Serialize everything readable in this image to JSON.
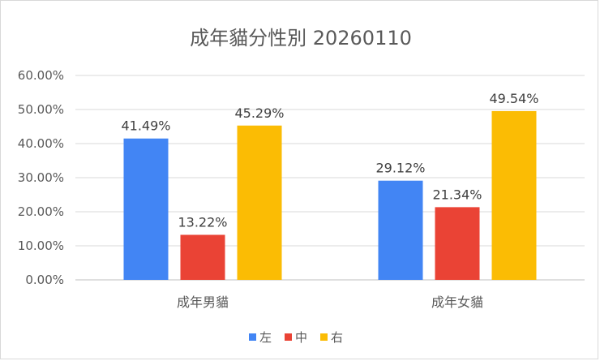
{
  "chart_data": {
    "type": "bar",
    "title": "成年貓分性別 20260110",
    "categories": [
      "成年男貓",
      "成年女貓"
    ],
    "series": [
      {
        "name": "左",
        "values": [
          41.49,
          29.12
        ],
        "labels": [
          "41.49%",
          "29.12%"
        ],
        "color": "#4285f4"
      },
      {
        "name": "中",
        "values": [
          13.22,
          21.34
        ],
        "labels": [
          "13.22%",
          "21.34%"
        ],
        "color": "#ea4335"
      },
      {
        "name": "右",
        "values": [
          45.29,
          49.54
        ],
        "labels": [
          "45.29%",
          "49.54%"
        ],
        "color": "#fbbc04"
      }
    ],
    "y_ticks": [
      "0.00%",
      "10.00%",
      "20.00%",
      "30.00%",
      "40.00%",
      "50.00%",
      "60.00%"
    ],
    "ylim": [
      0,
      60
    ],
    "grid": true,
    "legend_position": "bottom",
    "xlabel": "",
    "ylabel": ""
  }
}
